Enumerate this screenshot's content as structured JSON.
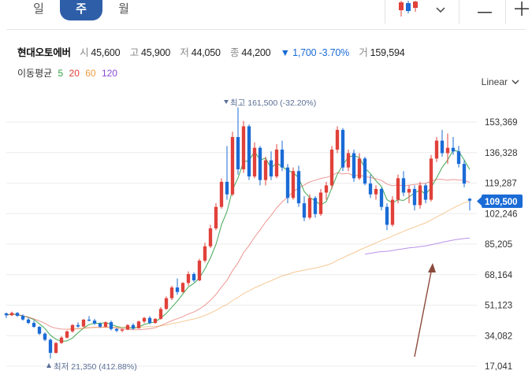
{
  "tabs": [
    {
      "label": "일"
    },
    {
      "label": "주"
    },
    {
      "label": "월"
    }
  ],
  "toolbar": {
    "chart_type_icon": "candlestick-icon",
    "dropdown_icon": "chevron-down-icon",
    "minimize_icon": "minus-icon",
    "add_icon": "plus-icon"
  },
  "stock": {
    "name": "현대오토에버",
    "open_label": "시",
    "open": "45,600",
    "high_label": "고",
    "high": "45,900",
    "low_label": "저",
    "low": "44,050",
    "close_label": "종",
    "close": "44,200",
    "change_arrow": "▼",
    "change": "1,700",
    "change_pct": "-3.70%",
    "volume_label": "거",
    "volume": "159,594"
  },
  "moving_avg": {
    "label": "이동평균",
    "periods": [
      {
        "value": "5",
        "color": "#2ea043"
      },
      {
        "value": "20",
        "color": "#e0413a"
      },
      {
        "value": "60",
        "color": "#f09a3e"
      },
      {
        "value": "120",
        "color": "#8a4bd8"
      }
    ]
  },
  "scale_mode": "Linear",
  "colors": {
    "up": "#e0413a",
    "down": "#1a6bd6",
    "accent": "#2f5ea8",
    "price_tag": "#1a6bd6",
    "annotation_arrow": "#8b4a3c"
  },
  "chart_data": {
    "type": "candlestick",
    "y_axis_ticks": [
      "153,369",
      "136,328",
      "119,287",
      "102,246",
      "85,205",
      "68,164",
      "51,123",
      "34,082",
      "17,041"
    ],
    "ylim": [
      17041,
      170000
    ],
    "current_price_tag": "109,500",
    "max_annotation": {
      "text": "최고 161,500 (-32.20%)",
      "value": 161500
    },
    "min_annotation": {
      "text": "최저 21,350 (412.88%)",
      "value": 21350
    },
    "candles": [
      [
        46500,
        47000,
        44000,
        45500
      ],
      [
        45500,
        47500,
        45000,
        46800
      ],
      [
        46800,
        47200,
        44500,
        45200
      ],
      [
        45200,
        46000,
        42500,
        43100
      ],
      [
        43100,
        44000,
        40500,
        41200
      ],
      [
        41200,
        42500,
        38500,
        39000
      ],
      [
        39000,
        39500,
        34500,
        35200
      ],
      [
        35200,
        36000,
        31000,
        31800
      ],
      [
        31800,
        32500,
        21350,
        24500
      ],
      [
        24500,
        30500,
        24000,
        30000
      ],
      [
        30000,
        33800,
        29500,
        33000
      ],
      [
        33000,
        37000,
        32500,
        36500
      ],
      [
        36500,
        40500,
        35800,
        40000
      ],
      [
        40000,
        41500,
        38500,
        39200
      ],
      [
        39200,
        43500,
        38800,
        43000
      ],
      [
        43000,
        45000,
        42000,
        42500
      ],
      [
        42500,
        43500,
        40000,
        40800
      ],
      [
        40800,
        41500,
        38500,
        39100
      ],
      [
        39100,
        42000,
        38500,
        41600
      ],
      [
        41600,
        42500,
        37000,
        37800
      ],
      [
        37800,
        38500,
        36000,
        36900
      ],
      [
        36900,
        38000,
        36000,
        37500
      ],
      [
        37500,
        40500,
        37200,
        40000
      ],
      [
        40000,
        41000,
        37500,
        38200
      ],
      [
        38200,
        42500,
        38000,
        42000
      ],
      [
        42000,
        44500,
        41000,
        44000
      ],
      [
        44000,
        45000,
        40500,
        41200
      ],
      [
        41200,
        43800,
        40800,
        43500
      ],
      [
        43500,
        50000,
        43000,
        49000
      ],
      [
        49000,
        56000,
        48500,
        55000
      ],
      [
        55000,
        62000,
        54000,
        61000
      ],
      [
        61000,
        66000,
        57000,
        58500
      ],
      [
        58500,
        64000,
        58000,
        63500
      ],
      [
        63500,
        70000,
        62000,
        68500
      ],
      [
        68500,
        69500,
        64000,
        65000
      ],
      [
        65000,
        77000,
        64500,
        76000
      ],
      [
        76000,
        86000,
        75000,
        84000
      ],
      [
        84000,
        96000,
        83000,
        94000
      ],
      [
        94000,
        108000,
        93000,
        106000
      ],
      [
        106000,
        122000,
        105000,
        120000
      ],
      [
        120000,
        140000,
        110000,
        113000
      ],
      [
        113000,
        148000,
        112000,
        145000
      ],
      [
        145000,
        161500,
        124000,
        127000
      ],
      [
        127000,
        154000,
        125000,
        151000
      ],
      [
        151000,
        152000,
        121000,
        123000
      ],
      [
        123000,
        142000,
        122000,
        139000
      ],
      [
        139000,
        140000,
        118000,
        121000
      ],
      [
        121000,
        134000,
        118000,
        132000
      ],
      [
        132000,
        137000,
        121000,
        123000
      ],
      [
        123000,
        141000,
        122000,
        138000
      ],
      [
        138000,
        143000,
        126000,
        128000
      ],
      [
        128000,
        130000,
        108000,
        111000
      ],
      [
        111000,
        128000,
        110000,
        126000
      ],
      [
        126000,
        129000,
        106000,
        108000
      ],
      [
        108000,
        112000,
        98000,
        100000
      ],
      [
        100000,
        113000,
        99000,
        111000
      ],
      [
        111000,
        112000,
        100000,
        102000
      ],
      [
        102000,
        116000,
        101000,
        114000
      ],
      [
        114000,
        120000,
        110000,
        118000
      ],
      [
        118000,
        140000,
        116000,
        138000
      ],
      [
        138000,
        151000,
        136000,
        149000
      ],
      [
        149000,
        150000,
        126000,
        128000
      ],
      [
        128000,
        138000,
        126000,
        136000
      ],
      [
        136000,
        138000,
        120000,
        122000
      ],
      [
        122000,
        136000,
        121000,
        133000
      ],
      [
        133000,
        134000,
        118000,
        119000
      ],
      [
        119000,
        124000,
        111000,
        113000
      ],
      [
        113000,
        118000,
        110000,
        116000
      ],
      [
        116000,
        117000,
        104000,
        106000
      ],
      [
        106000,
        108000,
        93000,
        96000
      ],
      [
        96000,
        112000,
        95000,
        110000
      ],
      [
        110000,
        124000,
        108000,
        122000
      ],
      [
        122000,
        126000,
        112000,
        114000
      ],
      [
        114000,
        118000,
        108000,
        116000
      ],
      [
        116000,
        118000,
        104000,
        107000
      ],
      [
        107000,
        120000,
        105000,
        118000
      ],
      [
        118000,
        119000,
        108000,
        110000
      ],
      [
        110000,
        135000,
        109000,
        133000
      ],
      [
        133000,
        145000,
        131000,
        143000
      ],
      [
        143000,
        149000,
        134000,
        136000
      ],
      [
        136000,
        147000,
        130000,
        139000
      ],
      [
        139000,
        145000,
        135000,
        137000
      ],
      [
        137000,
        140000,
        128000,
        130000
      ],
      [
        130000,
        132000,
        117000,
        119000
      ],
      [
        110500,
        111000,
        104000,
        109500
      ]
    ]
  }
}
